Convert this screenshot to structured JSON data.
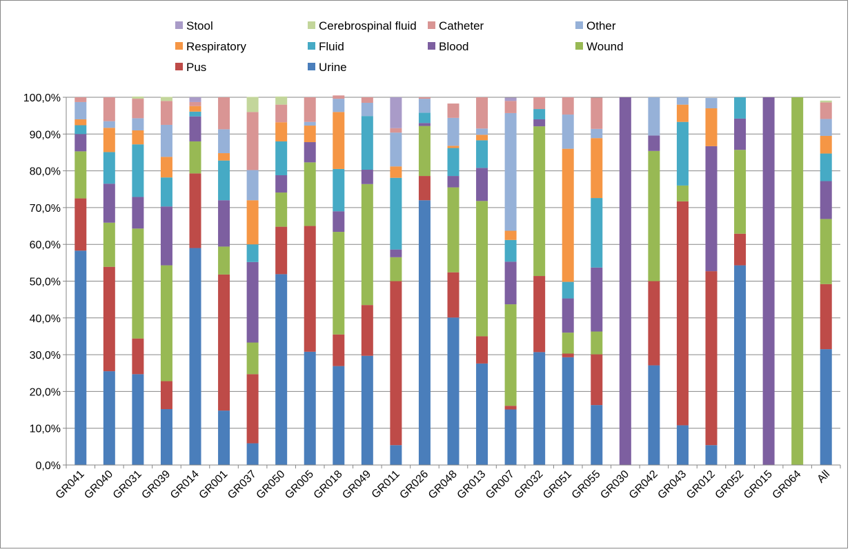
{
  "chart_data": {
    "type": "bar",
    "stacked": "percent",
    "title": "",
    "xlabel": "",
    "ylabel": "",
    "ylim": [
      0,
      100
    ],
    "ytick_values": [
      0,
      10,
      20,
      30,
      40,
      50,
      60,
      70,
      80,
      90,
      100
    ],
    "ytick_labels": [
      "0,0%",
      "10,0%",
      "20,0%",
      "30,0%",
      "40,0%",
      "50,0%",
      "60,0%",
      "70,0%",
      "80,0%",
      "90,0%",
      "100,0%"
    ],
    "grid": "horizontal",
    "legend_position": "top",
    "categories": [
      "GR041",
      "GR040",
      "GR031",
      "GR039",
      "GR014",
      "GR001",
      "GR037",
      "GR050",
      "GR005",
      "GR018",
      "GR049",
      "GR011",
      "GR026",
      "GR048",
      "GR013",
      "GR007",
      "GR032",
      "GR051",
      "GR055",
      "GR030",
      "GR042",
      "GR043",
      "GR012",
      "GR052",
      "GR015",
      "GR064",
      "All"
    ],
    "legend_order": [
      "Stool",
      "Cerebrospinal fluid",
      "Catheter",
      "Other",
      "Respiratory",
      "Fluid",
      "Blood",
      "Wound",
      "Pus",
      "Urine"
    ],
    "series": [
      {
        "name": "Urine",
        "color": "#4A7EBB",
        "values": [
          58.3,
          25.5,
          24.7,
          15.2,
          59.0,
          14.8,
          5.9,
          51.9,
          30.8,
          26.9,
          29.7,
          5.4,
          72.0,
          40.1,
          27.6,
          15.1,
          30.7,
          29.3,
          16.3,
          0,
          27.1,
          10.8,
          5.4,
          54.3,
          0,
          0,
          31.5
        ]
      },
      {
        "name": "Pus",
        "color": "#BE4B48",
        "values": [
          14.2,
          28.4,
          9.7,
          7.6,
          20.3,
          37.0,
          18.8,
          12.9,
          34.2,
          8.6,
          13.8,
          44.6,
          6.6,
          12.3,
          7.4,
          1.0,
          20.7,
          1.0,
          13.8,
          0,
          22.9,
          60.9,
          47.3,
          8.6,
          0,
          0,
          17.7
        ]
      },
      {
        "name": "Wound",
        "color": "#98B954",
        "values": [
          12.8,
          12.0,
          29.9,
          31.5,
          8.7,
          7.6,
          8.6,
          9.3,
          17.3,
          27.9,
          32.9,
          6.5,
          13.6,
          23.1,
          36.8,
          27.6,
          40.7,
          5.7,
          6.2,
          0,
          35.4,
          4.3,
          0,
          22.8,
          0,
          100,
          17.7
        ]
      },
      {
        "name": "Blood",
        "color": "#7D5FA0",
        "values": [
          4.7,
          10.6,
          8.6,
          16.0,
          6.8,
          12.6,
          21.9,
          4.7,
          5.5,
          5.6,
          3.9,
          2.1,
          0.8,
          3.1,
          9.0,
          11.6,
          1.9,
          9.3,
          17.4,
          100,
          4.2,
          0,
          34.0,
          8.5,
          100,
          0,
          10.3
        ]
      },
      {
        "name": "Fluid",
        "color": "#46AAC5",
        "values": [
          2.4,
          8.6,
          14.3,
          7.9,
          1.3,
          10.8,
          4.8,
          9.2,
          0,
          11.5,
          14.6,
          19.5,
          2.8,
          7.6,
          7.5,
          5.9,
          2.8,
          4.5,
          18.9,
          0,
          0,
          17.3,
          0,
          5.8,
          0,
          0,
          7.5
        ]
      },
      {
        "name": "Respiratory",
        "color": "#F59645",
        "values": [
          1.6,
          6.6,
          3.8,
          5.6,
          1.5,
          2.0,
          12.0,
          5.2,
          4.5,
          15.5,
          0,
          3.1,
          0,
          0.6,
          1.5,
          2.5,
          0,
          36.2,
          16.3,
          0,
          0,
          4.7,
          10.3,
          0,
          0,
          0,
          4.8
        ]
      },
      {
        "name": "Other",
        "color": "#96B1D8",
        "values": [
          4.7,
          1.8,
          3.3,
          8.7,
          0,
          6.5,
          8.2,
          0,
          1.0,
          3.6,
          3.6,
          9.2,
          3.8,
          7.6,
          1.7,
          32.0,
          0,
          9.3,
          2.5,
          0,
          10.4,
          2.0,
          2.8,
          0,
          0,
          0,
          4.6
        ]
      },
      {
        "name": "Catheter",
        "color": "#D99594",
        "values": [
          1.3,
          6.5,
          5.3,
          6.5,
          1.1,
          8.7,
          15.8,
          4.8,
          6.7,
          0.9,
          1.5,
          1.2,
          0.4,
          3.9,
          8.5,
          3.3,
          3.2,
          4.7,
          8.5,
          0,
          0,
          0,
          0,
          0,
          0,
          0,
          4.5
        ]
      },
      {
        "name": "Cerebrospinal fluid",
        "color": "#C3D69B",
        "values": [
          0,
          0,
          0.6,
          1.1,
          0,
          0,
          4.1,
          2.2,
          0,
          0,
          0,
          0,
          0,
          0,
          0,
          0,
          0,
          0,
          0,
          0,
          0,
          0,
          0,
          0,
          0,
          0,
          0.5
        ]
      },
      {
        "name": "Stool",
        "color": "#A99BC8",
        "values": [
          0,
          0,
          0,
          0,
          1.3,
          0,
          0,
          0,
          0,
          0,
          0,
          8.4,
          0,
          0,
          0,
          0.9,
          0,
          0,
          0,
          0,
          0,
          0,
          0,
          0,
          0,
          0,
          0
        ]
      }
    ]
  }
}
